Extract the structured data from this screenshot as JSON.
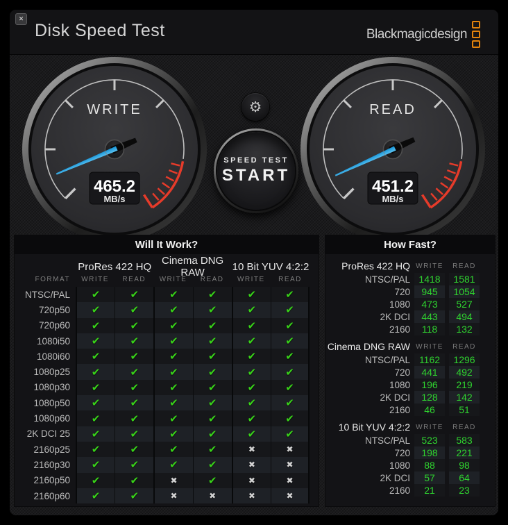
{
  "window": {
    "close_label": "✕"
  },
  "header": {
    "title": "Disk Speed Test",
    "brand": "Blackmagicdesign"
  },
  "icons": {
    "gear": "⚙",
    "check": "✔",
    "cross": "✖"
  },
  "gauges": {
    "write": {
      "label": "WRITE",
      "value": "465.2",
      "unit": "MB/s"
    },
    "read": {
      "label": "READ",
      "value": "451.2",
      "unit": "MB/s"
    }
  },
  "start_button": {
    "line1": "SPEED TEST",
    "line2": "START"
  },
  "will_it_work": {
    "title": "Will It Work?",
    "format_header": "FORMAT",
    "codecs": [
      "ProRes 422 HQ",
      "Cinema DNG RAW",
      "10 Bit YUV 4:2:2"
    ],
    "sub_headers": [
      "WRITE",
      "READ"
    ],
    "rows": [
      {
        "format": "NTSC/PAL",
        "results": [
          true,
          true,
          true,
          true,
          true,
          true
        ]
      },
      {
        "format": "720p50",
        "results": [
          true,
          true,
          true,
          true,
          true,
          true
        ]
      },
      {
        "format": "720p60",
        "results": [
          true,
          true,
          true,
          true,
          true,
          true
        ]
      },
      {
        "format": "1080i50",
        "results": [
          true,
          true,
          true,
          true,
          true,
          true
        ]
      },
      {
        "format": "1080i60",
        "results": [
          true,
          true,
          true,
          true,
          true,
          true
        ]
      },
      {
        "format": "1080p25",
        "results": [
          true,
          true,
          true,
          true,
          true,
          true
        ]
      },
      {
        "format": "1080p30",
        "results": [
          true,
          true,
          true,
          true,
          true,
          true
        ]
      },
      {
        "format": "1080p50",
        "results": [
          true,
          true,
          true,
          true,
          true,
          true
        ]
      },
      {
        "format": "1080p60",
        "results": [
          true,
          true,
          true,
          true,
          true,
          true
        ]
      },
      {
        "format": "2K DCI 25",
        "results": [
          true,
          true,
          true,
          true,
          true,
          true
        ]
      },
      {
        "format": "2160p25",
        "results": [
          true,
          true,
          true,
          true,
          false,
          false
        ]
      },
      {
        "format": "2160p30",
        "results": [
          true,
          true,
          true,
          true,
          false,
          false
        ]
      },
      {
        "format": "2160p50",
        "results": [
          true,
          true,
          false,
          true,
          false,
          false
        ]
      },
      {
        "format": "2160p60",
        "results": [
          true,
          true,
          false,
          false,
          false,
          false
        ]
      }
    ]
  },
  "how_fast": {
    "title": "How Fast?",
    "sub_headers": [
      "WRITE",
      "READ"
    ],
    "sections": [
      {
        "codec": "ProRes 422 HQ",
        "rows": [
          {
            "format": "NTSC/PAL",
            "write": "1418",
            "read": "1581"
          },
          {
            "format": "720",
            "write": "945",
            "read": "1054"
          },
          {
            "format": "1080",
            "write": "473",
            "read": "527"
          },
          {
            "format": "2K DCI",
            "write": "443",
            "read": "494"
          },
          {
            "format": "2160",
            "write": "118",
            "read": "132"
          }
        ]
      },
      {
        "codec": "Cinema DNG RAW",
        "rows": [
          {
            "format": "NTSC/PAL",
            "write": "1162",
            "read": "1296"
          },
          {
            "format": "720",
            "write": "441",
            "read": "492"
          },
          {
            "format": "1080",
            "write": "196",
            "read": "219"
          },
          {
            "format": "2K DCI",
            "write": "128",
            "read": "142"
          },
          {
            "format": "2160",
            "write": "46",
            "read": "51"
          }
        ]
      },
      {
        "codec": "10 Bit YUV 4:2:2",
        "rows": [
          {
            "format": "NTSC/PAL",
            "write": "523",
            "read": "583"
          },
          {
            "format": "720",
            "write": "198",
            "read": "221"
          },
          {
            "format": "1080",
            "write": "88",
            "read": "98"
          },
          {
            "format": "2K DCI",
            "write": "57",
            "read": "64"
          },
          {
            "format": "2160",
            "write": "21",
            "read": "23"
          }
        ]
      }
    ]
  },
  "colors": {
    "brand_orange": "#e2830d",
    "needle_blue": "#23a7ea",
    "red_zone": "#e63b2a",
    "check_green": "#38d219",
    "value_green": "#2fd32f"
  }
}
